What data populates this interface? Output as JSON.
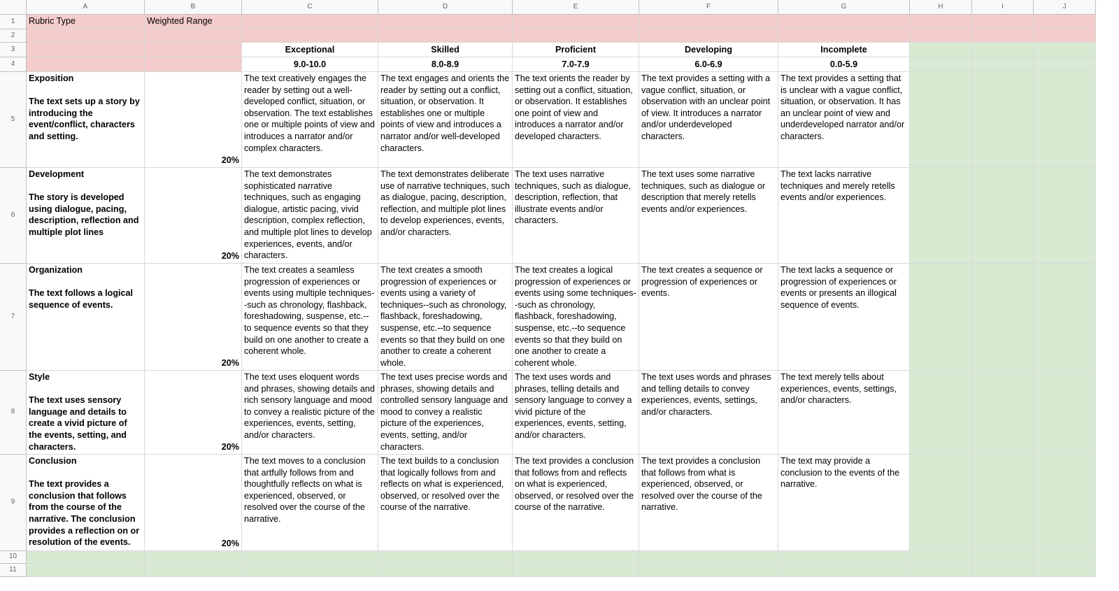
{
  "column_headers": [
    "A",
    "B",
    "C",
    "D",
    "E",
    "F",
    "G",
    "H",
    "I",
    "J"
  ],
  "row_numbers": [
    1,
    2,
    3,
    4,
    5,
    6,
    7,
    8,
    9,
    10,
    11
  ],
  "sheet": {
    "rubric_type_label": "Rubric Type",
    "rubric_type": "Weighted Range Rubric",
    "levels": [
      {
        "name": "Exceptional",
        "range": "9.0-10.0"
      },
      {
        "name": "Skilled",
        "range": "8.0-8.9"
      },
      {
        "name": "Proficient",
        "range": "7.0-7.9"
      },
      {
        "name": "Developing",
        "range": "6.0-6.9"
      },
      {
        "name": "Incomplete",
        "range": "0.0-5.9"
      }
    ],
    "criteria": [
      {
        "title": "Exposition",
        "description": "The text sets up a story by introducing the event/conflict, characters and setting.",
        "weight": "20%",
        "descriptors": [
          "The text creatively engages the reader by setting out a well-developed conflict, situation, or observation. The text establishes one or multiple points of view and introduces a narrator and/or complex characters.",
          "The text engages and orients the reader by setting out a conflict, situation, or observation. It establishes one or multiple points of view and introduces a narrator and/or well-developed characters.",
          "The text orients the reader by setting out a conflict, situation, or observation. It establishes one point of view and introduces a narrator and/or developed characters.",
          "The text provides a setting with a vague conflict, situation, or observation with an unclear point of view. It introduces a narrator and/or underdeveloped characters.",
          "The text provides a setting that is unclear with a vague conflict, situation, or observation. It has an unclear point of view and underdeveloped narrator and/or characters."
        ]
      },
      {
        "title": "Development",
        "description": " The story is developed using dialogue, pacing, description, reflection and multiple plot lines",
        "weight": "20%",
        "descriptors": [
          "The text demonstrates sophisticated narrative techniques, such as engaging dialogue, artistic pacing, vivid description, complex reflection, and multiple plot lines to develop experiences, events, and/or characters.",
          "The text demonstrates deliberate use of narrative techniques, such as dialogue, pacing, description, reflection, and multiple plot lines to develop experiences, events, and/or characters.",
          "The text uses narrative techniques, such as dialogue, description, reflection, that illustrate events and/or characters.",
          "The text uses some narrative techniques, such as dialogue or description that merely retells events and/or experiences.",
          "The text lacks narrative techniques and merely retells events and/or experiences."
        ]
      },
      {
        "title": "Organization",
        "description": "The text follows a logical sequence of events.",
        "weight": "20%",
        "descriptors": [
          "The text creates a seamless progression of experiences or events using multiple techniques--such as chronology, flashback, foreshadowing, suspense, etc.--to sequence events so that they build on one another to create a coherent whole.",
          "The text creates a smooth progression of experiences or events using a variety of techniques--such as chronology, flashback, foreshadowing, suspense, etc.--to sequence events so that they build on one another to create a coherent whole.",
          "The text creates a logical progression of experiences or events using some techniques--such as chronology, flashback, foreshadowing, suspense, etc.--to sequence events so that they build on one another to create a coherent whole.",
          "The text creates a sequence or progression of experiences or events.",
          "The text lacks a sequence or progression of experiences or events or presents an illogical sequence of events."
        ]
      },
      {
        "title": "Style",
        "description": "The text uses sensory language and details to create a vivid picture of the events, setting, and characters.",
        "weight": "20%",
        "descriptors": [
          "The text uses eloquent words and phrases, showing details and rich sensory language and mood to convey a realistic picture of the experiences, events, setting, and/or characters.",
          "The text uses precise words and phrases, showing details and controlled sensory language and mood to convey a realistic picture of the experiences, events, setting, and/or characters.",
          "The text uses words and phrases, telling details and sensory language to convey a vivid picture of the experiences, events, setting, and/or characters.",
          "The text uses words and phrases and telling details to convey experiences, events, settings, and/or characters.",
          "The text merely tells about experiences, events, settings, and/or characters."
        ]
      },
      {
        "title": "Conclusion",
        "description": "The text provides a conclusion that follows from the course of the narrative. The conclusion provides a reflection on or resolution of the events.",
        "weight": "20%",
        "descriptors": [
          "The text moves to a conclusion that artfully follows from and thoughtfully reflects on what is experienced, observed, or resolved over the course of the narrative.",
          "The text builds to a conclusion that logically follows from and reflects on what is experienced, observed, or resolved over the course of the narrative.",
          "The text provides a conclusion that follows from and reflects on what is experienced, observed, or resolved over the course of the narrative.",
          "The text provides a conclusion that follows from what is experienced, observed, or resolved over the course of the narrative.",
          "The text may provide a conclusion to the events of the narrative."
        ]
      }
    ]
  }
}
